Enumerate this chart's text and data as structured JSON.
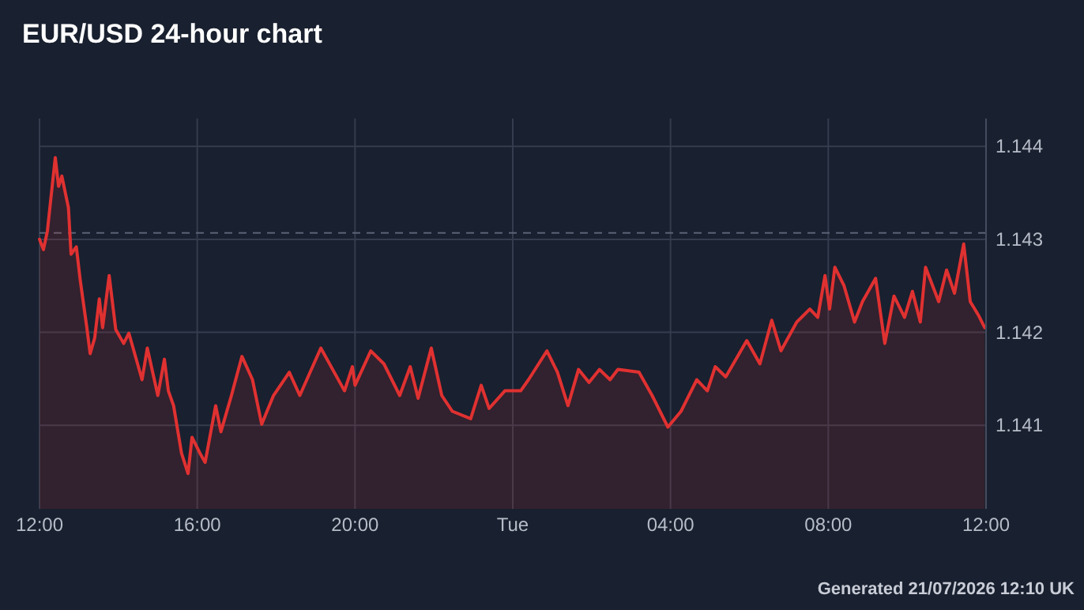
{
  "chart_data": {
    "type": "area",
    "title": "EUR/USD 24-hour chart",
    "x": [
      "2026-07-20T12:00",
      "2026-07-20T12:06",
      "2026-07-20T12:12",
      "2026-07-20T12:24",
      "2026-07-20T12:29",
      "2026-07-20T12:34",
      "2026-07-20T12:44",
      "2026-07-20T12:48",
      "2026-07-20T12:56",
      "2026-07-20T13:02",
      "2026-07-20T13:12",
      "2026-07-20T13:17",
      "2026-07-20T13:24",
      "2026-07-20T13:31",
      "2026-07-20T13:36",
      "2026-07-20T13:46",
      "2026-07-20T13:56",
      "2026-07-20T14:08",
      "2026-07-20T14:16",
      "2026-07-20T14:36",
      "2026-07-20T14:44",
      "2026-07-20T15:00",
      "2026-07-20T15:10",
      "2026-07-20T15:16",
      "2026-07-20T15:24",
      "2026-07-20T15:36",
      "2026-07-20T15:46",
      "2026-07-20T15:52",
      "2026-07-20T16:04",
      "2026-07-20T16:12",
      "2026-07-20T16:28",
      "2026-07-20T16:36",
      "2026-07-20T16:52",
      "2026-07-20T17:08",
      "2026-07-20T17:24",
      "2026-07-20T17:38",
      "2026-07-20T17:56",
      "2026-07-20T18:20",
      "2026-07-20T18:36",
      "2026-07-20T19:08",
      "2026-07-20T19:44",
      "2026-07-20T19:56",
      "2026-07-20T20:00",
      "2026-07-20T20:24",
      "2026-07-20T20:44",
      "2026-07-20T21:08",
      "2026-07-20T21:24",
      "2026-07-20T21:36",
      "2026-07-20T21:56",
      "2026-07-20T22:12",
      "2026-07-20T22:28",
      "2026-07-20T22:56",
      "2026-07-20T23:12",
      "2026-07-20T23:24",
      "2026-07-20T23:48",
      "2026-07-21T00:12",
      "2026-07-21T00:24",
      "2026-07-21T00:52",
      "2026-07-21T01:08",
      "2026-07-21T01:24",
      "2026-07-21T01:40",
      "2026-07-21T01:56",
      "2026-07-21T02:12",
      "2026-07-21T02:28",
      "2026-07-21T02:40",
      "2026-07-21T03:12",
      "2026-07-21T03:32",
      "2026-07-21T03:56",
      "2026-07-21T04:16",
      "2026-07-21T04:40",
      "2026-07-21T04:56",
      "2026-07-21T05:08",
      "2026-07-21T05:24",
      "2026-07-21T05:56",
      "2026-07-21T06:16",
      "2026-07-21T06:34",
      "2026-07-21T06:48",
      "2026-07-21T07:12",
      "2026-07-21T07:32",
      "2026-07-21T07:44",
      "2026-07-21T07:55",
      "2026-07-21T08:02",
      "2026-07-21T08:10",
      "2026-07-21T08:24",
      "2026-07-21T08:40",
      "2026-07-21T08:52",
      "2026-07-21T09:12",
      "2026-07-21T09:26",
      "2026-07-21T09:40",
      "2026-07-21T09:56",
      "2026-07-21T10:08",
      "2026-07-21T10:20",
      "2026-07-21T10:28",
      "2026-07-21T10:48",
      "2026-07-21T11:00",
      "2026-07-21T11:12",
      "2026-07-21T11:26",
      "2026-07-21T11:36",
      "2026-07-21T11:48",
      "2026-07-21T11:58"
    ],
    "series": [
      {
        "color": "#e03131",
        "values": [
          1.143,
          1.14289,
          1.14309,
          1.14388,
          1.14357,
          1.14368,
          1.14334,
          1.14284,
          1.14292,
          1.14256,
          1.14205,
          1.14177,
          1.14194,
          1.14236,
          1.14205,
          1.14261,
          1.14203,
          1.14188,
          1.14199,
          1.14149,
          1.14183,
          1.14132,
          1.14171,
          1.14137,
          1.14121,
          1.1407,
          1.14048,
          1.14087,
          1.1407,
          1.1406,
          1.14121,
          1.14093,
          1.14132,
          1.14174,
          1.14149,
          1.14101,
          1.14132,
          1.14157,
          1.14132,
          1.14183,
          1.14137,
          1.14163,
          1.14143,
          1.1418,
          1.14166,
          1.14132,
          1.14163,
          1.14129,
          1.14183,
          1.14132,
          1.14115,
          1.14107,
          1.14143,
          1.14118,
          1.14137,
          1.14137,
          1.14149,
          1.1418,
          1.14157,
          1.14121,
          1.1416,
          1.14146,
          1.1416,
          1.14149,
          1.1416,
          1.14157,
          1.14132,
          1.14098,
          1.14115,
          1.14149,
          1.14137,
          1.14163,
          1.14152,
          1.14191,
          1.14166,
          1.14213,
          1.1418,
          1.14211,
          1.14225,
          1.14216,
          1.14261,
          1.14225,
          1.1427,
          1.1425,
          1.14211,
          1.14233,
          1.14258,
          1.14188,
          1.14239,
          1.14216,
          1.14244,
          1.14211,
          1.1427,
          1.14233,
          1.14267,
          1.14242,
          1.14295,
          1.14233,
          1.14219,
          1.14205
        ]
      }
    ],
    "xlim": [
      "2026-07-20T12:00",
      "2026-07-21T12:00"
    ],
    "xticks": [
      {
        "value": "2026-07-20T12:00",
        "label": "12:00"
      },
      {
        "value": "2026-07-20T16:00",
        "label": "16:00"
      },
      {
        "value": "2026-07-20T20:00",
        "label": "20:00"
      },
      {
        "value": "2026-07-21T00:00",
        "label": "Tue"
      },
      {
        "value": "2026-07-21T04:00",
        "label": "04:00"
      },
      {
        "value": "2026-07-21T08:00",
        "label": "08:00"
      },
      {
        "value": "2026-07-21T12:00",
        "label": "12:00"
      }
    ],
    "ylim": [
      1.1401,
      1.1443
    ],
    "yticks": [
      1.141,
      1.142,
      1.143,
      1.144
    ],
    "grid": true,
    "ref_lines": [
      {
        "axis": "y",
        "value": 1.14307,
        "line_style": "dashed",
        "color": "#5a6275"
      }
    ],
    "annotations": [
      "Generated 21/07/2026 12:10 UK"
    ]
  }
}
